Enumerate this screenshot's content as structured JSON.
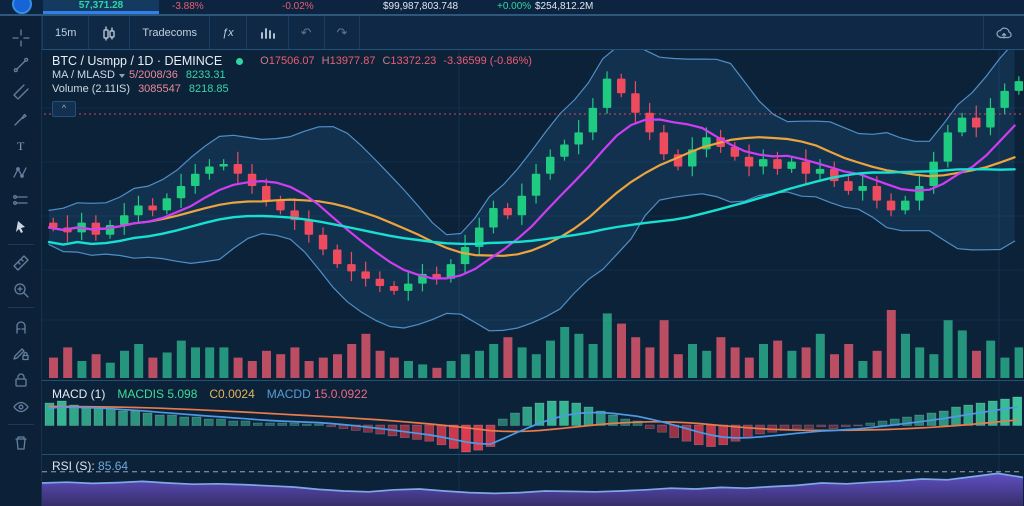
{
  "top_bar": {
    "price_tab": "57,371.28",
    "change_pct_1": "-3.88%",
    "change_pct_2": "-0.02%",
    "volume_value": "$99,987,803.748",
    "change_pct_3": "+0.00%",
    "market_cap_value": "$254,812.2M"
  },
  "toolbar": {
    "interval": "15m",
    "compare_label": "Tradecoms",
    "fx_glyph": "ƒx",
    "undo_glyph": "↶",
    "redo_glyph": "↷"
  },
  "sidebar": {
    "tools": [
      "crosshair",
      "trend-line",
      "pitchfork",
      "brush",
      "text",
      "xabcd-pattern",
      "price-range",
      "cursor",
      "ruler",
      "zoom-in",
      "magnet",
      "drawing-lock",
      "lock",
      "eye",
      "remove"
    ]
  },
  "legend": {
    "symbol": "BTC / Usmpp / 1D · DEMINCE",
    "ohlc": {
      "items": [
        {
          "k": "O",
          "v": "17506.07"
        },
        {
          "k": "H",
          "v": "13977.87"
        },
        {
          "k": "C",
          "v": "13372.23"
        }
      ],
      "change": "-3.36599 (-0.86%)"
    },
    "ma_row": {
      "label": "MA / MLASD",
      "v1": "5/2008/36",
      "v2": "8233.31"
    },
    "volume_row": {
      "label": "Volume (2.11IS)",
      "v1": "3085547",
      "v2": "8218.85"
    },
    "collapse_glyph": "^"
  },
  "macd_legend": {
    "title": "MACD (1)",
    "item_green": "MACDIS 5.098",
    "item_amber": "C0.0024",
    "item_blue": "MACDD",
    "item_pink": "15.0.0922"
  },
  "rsi_legend": {
    "label": "RSI (S):",
    "value": "85.64"
  },
  "colors": {
    "bull": "#1fcb80",
    "bear": "#ef4b5e",
    "accent_blue": "#2f80ed",
    "teal": "#2fd6a4",
    "red": "#e85d6d",
    "band_fill": "rgba(47,128,190,0.16)",
    "band_line": "rgba(96,168,230,0.8)",
    "ma_fast": "#cf3df2",
    "ma_mid": "#eca43d",
    "ma_slow": "#17e0d0",
    "macd_line": "#4f9ae6",
    "macd_signal": "#e87c4b",
    "rsi_line": "#7fa7e8",
    "rsi_fill_top": "#6a55d4",
    "rsi_fill_bottom": "#372f6b",
    "ref_dotted": "#f2506a"
  },
  "chart_data": {
    "type": "candlestick",
    "panes": [
      {
        "name": "price",
        "type": "candlestick",
        "overlays": [
          "bollinger-band",
          "ma-fast-magenta",
          "ma-mid-orange",
          "ma-slow-cyan",
          "red-dotted-reference-line"
        ],
        "closes": [
          33,
          31,
          35,
          30,
          34,
          38,
          42,
          40,
          45,
          50,
          55,
          58,
          59,
          55,
          50,
          44,
          40,
          36,
          30,
          24,
          18,
          15,
          12,
          9,
          7,
          10,
          14,
          12,
          18,
          25,
          33,
          41,
          38,
          46,
          55,
          62,
          67,
          72,
          82,
          94,
          88,
          80,
          72,
          63,
          58,
          65,
          70,
          66,
          62,
          58,
          61,
          57,
          60,
          55,
          57,
          52,
          48,
          50,
          44,
          40,
          44,
          50,
          60,
          72,
          78,
          74,
          82,
          89,
          93
        ],
        "volumes": [
          12,
          18,
          10,
          14,
          9,
          16,
          20,
          12,
          15,
          22,
          18,
          18,
          18,
          12,
          10,
          16,
          14,
          18,
          10,
          12,
          14,
          20,
          26,
          16,
          12,
          10,
          8,
          6,
          10,
          14,
          16,
          20,
          24,
          18,
          14,
          22,
          30,
          26,
          20,
          38,
          32,
          24,
          18,
          34,
          14,
          20,
          16,
          24,
          18,
          12,
          20,
          22,
          16,
          18,
          26,
          14,
          20,
          10,
          16,
          40,
          26,
          18,
          14,
          34,
          28,
          16,
          22,
          12,
          18
        ],
        "ylim": [
          0,
          100
        ]
      },
      {
        "name": "macd",
        "type": "bar",
        "histogram": [
          11,
          12,
          10,
          9,
          9,
          8,
          7,
          7,
          6,
          5,
          5,
          4,
          4,
          3,
          3,
          2,
          2,
          1,
          1,
          1,
          1,
          0.5,
          0.5,
          -1,
          -2,
          -3,
          -4,
          -5,
          -6,
          -7,
          -8,
          -9,
          -11,
          -13,
          -15,
          -14,
          -12,
          3,
          6,
          9,
          11,
          12,
          12,
          11,
          9,
          7,
          5,
          3,
          2,
          -2,
          -4,
          -7,
          -9,
          -11,
          -12,
          -11,
          -9,
          -7,
          -5,
          -4,
          -3,
          -2,
          -2,
          -1,
          -2,
          -1,
          -0.5,
          1,
          2,
          3,
          4,
          5,
          6,
          7,
          9,
          10,
          11,
          12,
          13,
          14
        ],
        "lines": [
          "macd-blue",
          "signal-orange"
        ]
      },
      {
        "name": "rsi",
        "type": "line",
        "values": [
          50,
          52,
          49,
          51,
          54,
          50,
          47,
          48,
          46,
          43,
          40,
          34,
          30,
          28,
          33,
          35,
          30,
          26,
          24,
          26,
          30,
          29,
          28,
          30,
          33,
          37,
          35,
          39,
          37,
          41,
          44,
          50,
          48,
          52,
          55,
          60,
          58,
          66,
          74,
          64
        ],
        "upper_band": 78,
        "ylim": [
          0,
          100
        ]
      }
    ]
  }
}
